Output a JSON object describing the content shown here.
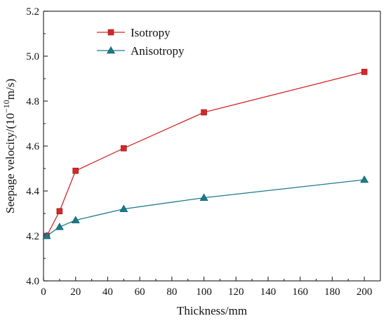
{
  "chart_data": {
    "type": "line",
    "title": "",
    "xlabel": "Thickness/mm",
    "ylabel_main": "Seepage velocity/(10",
    "ylabel_exp": "−10",
    "ylabel_tail": "m/s)",
    "xlim": [
      0,
      210
    ],
    "ylim": [
      4.0,
      5.2
    ],
    "xticks": [
      0,
      20,
      40,
      60,
      80,
      100,
      120,
      140,
      160,
      180,
      200
    ],
    "yticks": [
      4.0,
      4.2,
      4.4,
      4.6,
      4.8,
      5.0,
      5.2
    ],
    "ytick_decimals": 1,
    "grid": false,
    "legend_position": "top-left",
    "series": [
      {
        "name": "Isotropy",
        "color": "#d62728",
        "marker": "square",
        "x": [
          2,
          10,
          20,
          50,
          100,
          200
        ],
        "y": [
          4.2,
          4.31,
          4.49,
          4.59,
          4.75,
          4.93
        ]
      },
      {
        "name": "Anisotropy",
        "color": "#1a7a8c",
        "marker": "triangle",
        "x": [
          2,
          10,
          20,
          50,
          100,
          200
        ],
        "y": [
          4.2,
          4.24,
          4.27,
          4.32,
          4.37,
          4.45
        ]
      }
    ]
  }
}
